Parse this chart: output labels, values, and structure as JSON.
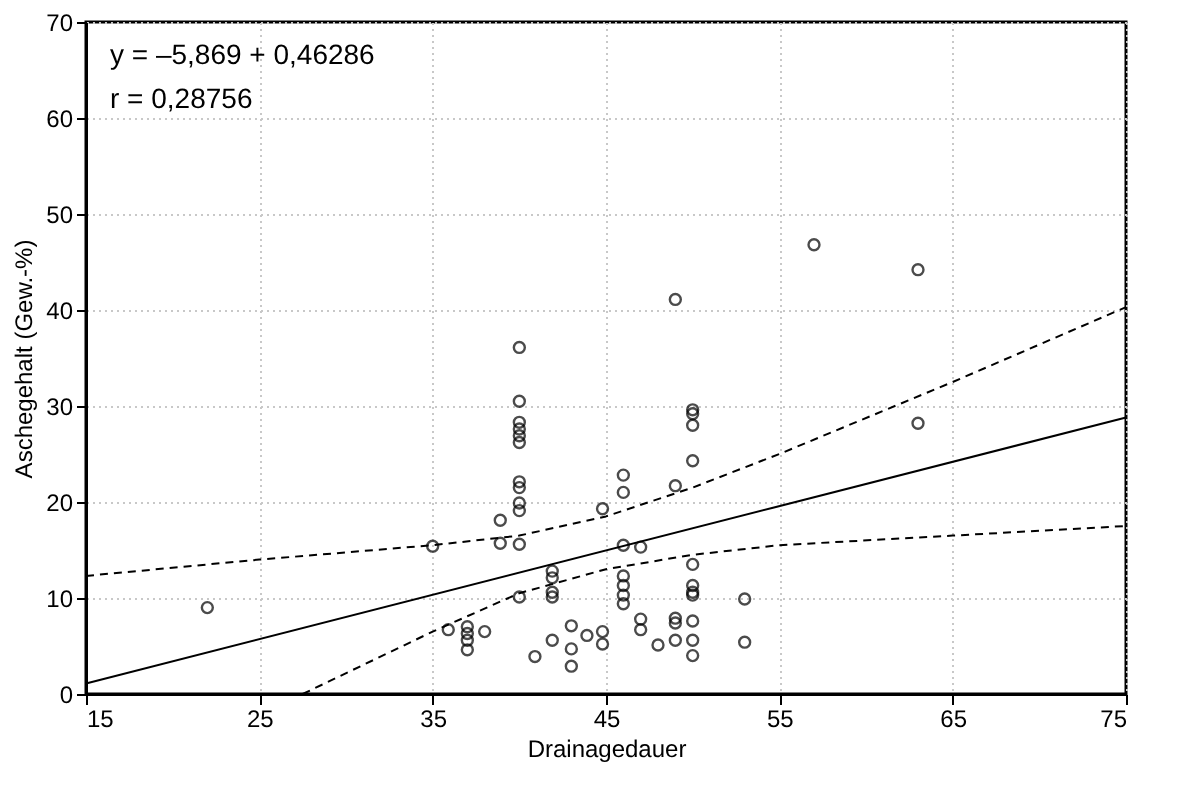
{
  "chart_data": {
    "type": "scatter",
    "xlabel": "Drainagedauer",
    "ylabel": "Aschegehalt (Gew.-%)",
    "xlim": [
      15,
      75
    ],
    "xticks": [
      15,
      25,
      35,
      45,
      55,
      65,
      75
    ],
    "ylim": [
      0,
      70
    ],
    "yticks": [
      0,
      10,
      20,
      30,
      40,
      50,
      60,
      70
    ],
    "grid": true,
    "annotations": [
      "y = –5,869 + 0,46286",
      "r = 0,28756"
    ],
    "series": [
      {
        "marker": "circle",
        "color": "#000000",
        "x": [
          22,
          35,
          35.9,
          37,
          37,
          37,
          37,
          38,
          38.9,
          38.9,
          40,
          40,
          40,
          40,
          40,
          40,
          40,
          40,
          40,
          40,
          40,
          40,
          40.9,
          41.9,
          41.9,
          41.9,
          41.9,
          41.9,
          43,
          43,
          43,
          43.9,
          44.8,
          44.8,
          44.8,
          46,
          46,
          46,
          46,
          46,
          46,
          46,
          47,
          47,
          47,
          48,
          49,
          49,
          49,
          49,
          49,
          50,
          50,
          50,
          50,
          50,
          50,
          50,
          50,
          50,
          50,
          50,
          53,
          53,
          57,
          63,
          63
        ],
        "values": [
          9,
          15.4,
          6.7,
          7.0,
          6.3,
          5.6,
          4.6,
          6.5,
          18.1,
          15.7,
          36.1,
          30.5,
          28.3,
          27.6,
          26.9,
          26.2,
          22.1,
          21.5,
          19.9,
          19.1,
          15.6,
          10.1,
          3.9,
          12.8,
          12.1,
          10.6,
          10.1,
          5.6,
          7.1,
          4.7,
          2.9,
          6.1,
          19.3,
          6.5,
          5.2,
          22.8,
          21.0,
          15.5,
          12.3,
          11.3,
          10.3,
          9.4,
          15.3,
          7.8,
          6.7,
          5.1,
          41.1,
          21.7,
          7.9,
          7.4,
          5.6,
          29.6,
          29.2,
          28.0,
          24.3,
          13.5,
          11.3,
          10.6,
          10.3,
          7.6,
          5.6,
          4.0,
          9.9,
          5.4,
          46.8,
          44.2,
          28.2
        ]
      },
      {
        "type": "line",
        "line_style": "solid",
        "marker": "none",
        "color": "#000000",
        "x": [
          15,
          75
        ],
        "values": [
          1.1,
          28.8
        ]
      },
      {
        "type": "line",
        "line_style": "dashed",
        "marker": "none",
        "color": "#000000",
        "x": [
          15,
          25,
          35,
          40,
          45,
          50,
          55,
          65,
          75
        ],
        "values": [
          12.3,
          14,
          15.5,
          16.5,
          18.5,
          21.5,
          25,
          32.5,
          40.3
        ]
      },
      {
        "type": "line",
        "line_style": "dashed",
        "marker": "none",
        "color": "#000000",
        "x": [
          27.5,
          35,
          40,
          45,
          50,
          55,
          65,
          75
        ],
        "values": [
          0,
          6.5,
          10.5,
          13,
          14.5,
          15.5,
          16.5,
          17.5
        ]
      }
    ]
  }
}
